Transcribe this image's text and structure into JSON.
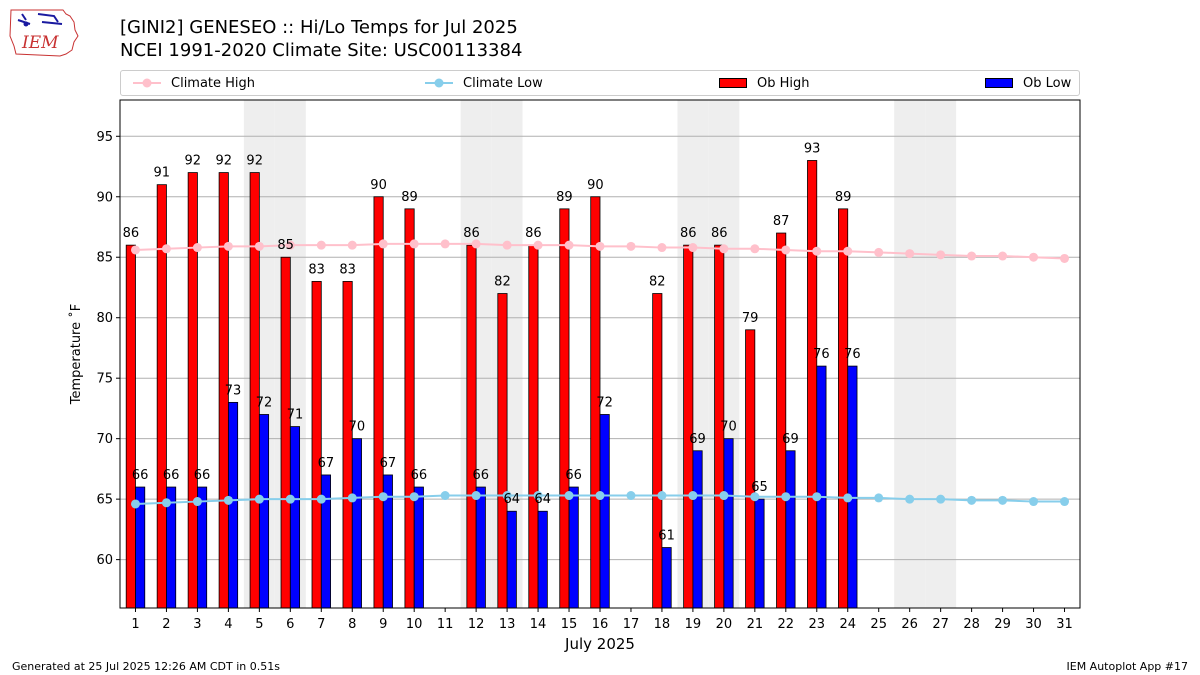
{
  "header": {
    "title_line1": "[GINI2] GENESEO :: Hi/Lo Temps for Jul 2025",
    "title_line2": "NCEI 1991-2020 Climate Site: USC00113384",
    "logo_text": "IEM"
  },
  "footer": {
    "left": "Generated at 25 Jul 2025 12:26 AM CDT in 0.51s",
    "right": "IEM Autoplot App #17"
  },
  "legend": {
    "climate_high": "Climate High",
    "climate_low": "Climate Low",
    "ob_high": "Ob High",
    "ob_low": "Ob Low"
  },
  "chart_data": {
    "type": "bar",
    "xlabel": "July 2025",
    "ylabel": "Temperature ˚F",
    "ylim": [
      56,
      98
    ],
    "yticks": [
      60,
      65,
      70,
      75,
      80,
      85,
      90,
      95
    ],
    "grid": true,
    "legend_position": "top",
    "days": [
      1,
      2,
      3,
      4,
      5,
      6,
      7,
      8,
      9,
      10,
      11,
      12,
      13,
      14,
      15,
      16,
      17,
      18,
      19,
      20,
      21,
      22,
      23,
      24,
      25,
      26,
      27,
      28,
      29,
      30,
      31
    ],
    "weekend_days": [
      5,
      6,
      12,
      13,
      19,
      20,
      26,
      27
    ],
    "series": [
      {
        "name": "Ob High",
        "kind": "bar",
        "color": "#ff0000",
        "values": [
          86,
          91,
          92,
          92,
          92,
          85,
          83,
          83,
          90,
          89,
          null,
          86,
          82,
          86,
          89,
          90,
          null,
          82,
          86,
          86,
          79,
          87,
          93,
          89,
          null,
          null,
          null,
          null,
          null,
          null,
          null
        ]
      },
      {
        "name": "Ob Low",
        "kind": "bar",
        "color": "#0000ff",
        "values": [
          66,
          66,
          66,
          73,
          72,
          71,
          67,
          70,
          67,
          66,
          null,
          66,
          64,
          64,
          66,
          72,
          null,
          61,
          69,
          70,
          65,
          69,
          76,
          76,
          null,
          null,
          null,
          null,
          null,
          null,
          null
        ]
      },
      {
        "name": "Climate High",
        "kind": "line",
        "color": "#ffc0cb",
        "values": [
          85.6,
          85.7,
          85.8,
          85.9,
          85.9,
          86.0,
          86.0,
          86.0,
          86.1,
          86.1,
          86.1,
          86.1,
          86.0,
          86.0,
          86.0,
          85.9,
          85.9,
          85.8,
          85.8,
          85.7,
          85.7,
          85.6,
          85.5,
          85.5,
          85.4,
          85.3,
          85.2,
          85.1,
          85.1,
          85.0,
          84.9
        ]
      },
      {
        "name": "Climate Low",
        "kind": "line",
        "color": "#87ceeb",
        "values": [
          64.6,
          64.7,
          64.8,
          64.9,
          65.0,
          65.0,
          65.0,
          65.1,
          65.2,
          65.2,
          65.3,
          65.3,
          65.3,
          65.3,
          65.3,
          65.3,
          65.3,
          65.3,
          65.3,
          65.3,
          65.2,
          65.2,
          65.2,
          65.1,
          65.1,
          65.0,
          65.0,
          64.9,
          64.9,
          64.8,
          64.8
        ]
      }
    ]
  }
}
